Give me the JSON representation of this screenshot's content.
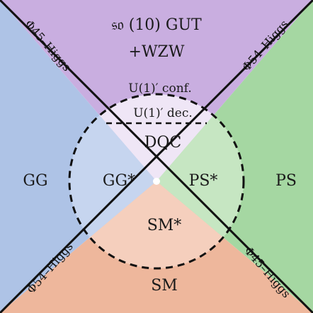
{
  "colors": {
    "top": "#c9aee0",
    "left": "#aec3e6",
    "right": "#a5d7a2",
    "bottom": "#eeb79c",
    "inner_top": "#efe6f6",
    "inner_left": "#c6d5ef",
    "inner_right": "#c6e6c2",
    "inner_bottom": "#f5cfbd"
  },
  "regions": {
    "top_line1": "𝔰𝔬 (10) GUT",
    "top_line2": "+WZW",
    "u1_conf": "U(1)′ conf.",
    "u1_dec": "U(1)′ dec.",
    "dqc": "DQC",
    "gg": "GG",
    "gg_star": "GG*",
    "ps_star": "PS*",
    "ps": "PS",
    "sm_star": "SM*",
    "sm": "SM"
  },
  "lines": {
    "upper_left": "Φ45–Higgs",
    "upper_right": "Φ54–Higgs",
    "lower_left": "Φ54–Higgs",
    "lower_right": "Φ45–Higgs"
  }
}
